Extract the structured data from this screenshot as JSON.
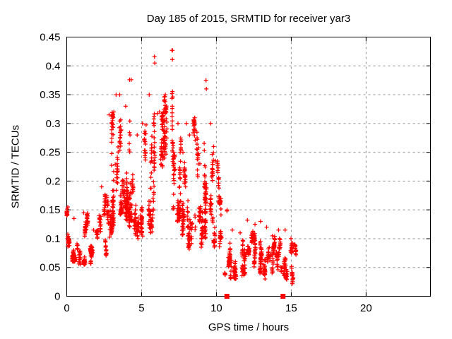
{
  "chart_data": {
    "type": "scatter",
    "title": "Day 185 of 2015, SRMTID for receiver yar3",
    "xlabel": "GPS time / hours",
    "ylabel": "SRMTID / TECUs",
    "xlim": [
      0,
      24.3
    ],
    "ylim": [
      0,
      0.45
    ],
    "xtick_values": [
      0,
      5,
      10,
      15,
      20
    ],
    "xtick_labels": [
      "0",
      "5",
      "10",
      "15",
      "20"
    ],
    "ytick_values": [
      0,
      0.05,
      0.1,
      0.15,
      0.2,
      0.25,
      0.3,
      0.35,
      0.4,
      0.45
    ],
    "ytick_labels": [
      "0",
      "0.05",
      "0.1",
      "0.15",
      "0.2",
      "0.25",
      "0.3",
      "0.35",
      "0.4",
      "0.45"
    ],
    "grid": true,
    "grid_color": "#909090",
    "axis_color": "#000000",
    "marker": "plus",
    "marker_color": "#ff0000",
    "legend": "none",
    "peak_points": [
      [
        2.83,
        0.315
      ],
      [
        3.3,
        0.35
      ],
      [
        4.2,
        0.376
      ],
      [
        5.86,
        0.416
      ],
      [
        5.88,
        0.405
      ],
      [
        7.03,
        0.427
      ],
      [
        7.06,
        0.411
      ],
      [
        8.0,
        0.3
      ],
      [
        8.55,
        0.31
      ],
      [
        9.3,
        0.375
      ],
      [
        9.33,
        0.36
      ],
      [
        10.7,
        0.148
      ]
    ],
    "zero_points_x": [
      10.7,
      14.45
    ],
    "bursts_format": [
      "x_center_hours",
      "x_halfwidth_hours",
      "n_points",
      "y_min_TECU",
      "y_max_TECU",
      "density_exponent"
    ],
    "bursts": [
      [
        0.05,
        0.15,
        40,
        0.085,
        0.155,
        1.6
      ],
      [
        0.45,
        0.35,
        60,
        0.06,
        0.135,
        1.8
      ],
      [
        1.1,
        0.35,
        70,
        0.055,
        0.145,
        1.8
      ],
      [
        1.8,
        0.3,
        60,
        0.055,
        0.115,
        1.8
      ],
      [
        2.35,
        0.25,
        50,
        0.07,
        0.19,
        2.0
      ],
      [
        2.8,
        0.2,
        60,
        0.1,
        0.315,
        2.2
      ],
      [
        3.15,
        0.15,
        55,
        0.12,
        0.32,
        2.0
      ],
      [
        3.5,
        0.2,
        70,
        0.14,
        0.35,
        1.8
      ],
      [
        3.9,
        0.2,
        65,
        0.13,
        0.33,
        1.9
      ],
      [
        4.3,
        0.2,
        60,
        0.12,
        0.376,
        2.0
      ],
      [
        4.7,
        0.2,
        45,
        0.1,
        0.28,
        2.0
      ],
      [
        5.1,
        0.2,
        45,
        0.1,
        0.3,
        2.2
      ],
      [
        5.5,
        0.2,
        50,
        0.11,
        0.35,
        2.3
      ],
      [
        5.86,
        0.1,
        30,
        0.12,
        0.416,
        2.4
      ],
      [
        6.2,
        0.2,
        55,
        0.12,
        0.32,
        2.0
      ],
      [
        6.6,
        0.15,
        45,
        0.13,
        0.35,
        2.0
      ],
      [
        7.05,
        0.12,
        45,
        0.14,
        0.427,
        2.2
      ],
      [
        7.4,
        0.2,
        55,
        0.13,
        0.3,
        1.9
      ],
      [
        7.8,
        0.2,
        50,
        0.1,
        0.25,
        1.8
      ],
      [
        8.2,
        0.2,
        45,
        0.08,
        0.28,
        2.0
      ],
      [
        8.55,
        0.15,
        40,
        0.09,
        0.31,
        2.1
      ],
      [
        8.9,
        0.2,
        40,
        0.07,
        0.23,
        1.9
      ],
      [
        9.3,
        0.12,
        65,
        0.1,
        0.375,
        2.0
      ],
      [
        9.65,
        0.15,
        40,
        0.1,
        0.3,
        2.2
      ],
      [
        9.95,
        0.15,
        35,
        0.08,
        0.235,
        1.9
      ],
      [
        10.3,
        0.2,
        35,
        0.05,
        0.17,
        1.8
      ],
      [
        10.7,
        0.2,
        40,
        0.035,
        0.15,
        1.7
      ],
      [
        11.1,
        0.25,
        45,
        0.03,
        0.115,
        1.7
      ],
      [
        11.6,
        0.25,
        45,
        0.03,
        0.11,
        1.6
      ],
      [
        12.1,
        0.25,
        45,
        0.035,
        0.132,
        1.7
      ],
      [
        12.55,
        0.2,
        40,
        0.04,
        0.125,
        1.9
      ],
      [
        12.95,
        0.2,
        40,
        0.04,
        0.13,
        2.0
      ],
      [
        13.35,
        0.2,
        40,
        0.03,
        0.12,
        1.8
      ],
      [
        13.75,
        0.2,
        40,
        0.03,
        0.105,
        1.7
      ],
      [
        14.15,
        0.2,
        40,
        0.025,
        0.115,
        1.8
      ],
      [
        14.55,
        0.2,
        40,
        0.025,
        0.115,
        2.0
      ],
      [
        14.95,
        0.2,
        35,
        0.02,
        0.1,
        1.8
      ],
      [
        15.2,
        0.1,
        12,
        0.03,
        0.09,
        1.6
      ]
    ]
  }
}
